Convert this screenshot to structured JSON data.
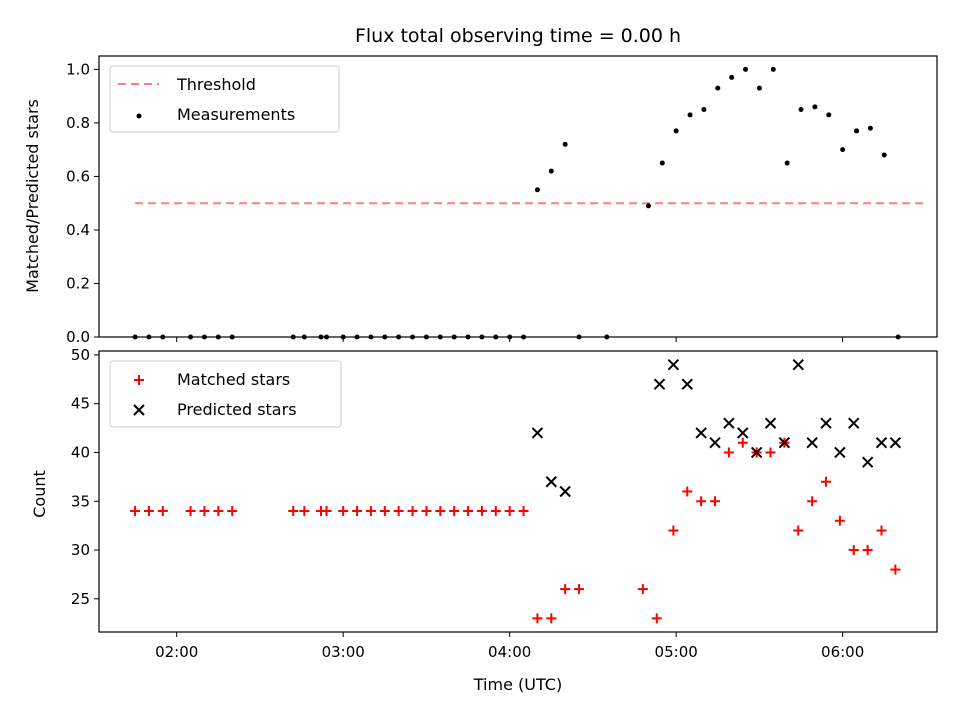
{
  "chart_data": [
    {
      "type": "scatter",
      "title": "Flux total observing time = 0.00 h",
      "xlabel": "",
      "ylabel": "Matched/Predicted stars",
      "xlim": [
        "01:32",
        "06:34"
      ],
      "ylim": [
        0,
        1.05
      ],
      "yticks": [
        "0.0",
        "0.2",
        "0.4",
        "0.6",
        "0.8",
        "1.0"
      ],
      "yticks_values": [
        0,
        0.2,
        0.4,
        0.6,
        0.8,
        1.0
      ],
      "legend": {
        "placement": "top-left",
        "entries": [
          "Threshold",
          "Measurements"
        ]
      },
      "threshold": {
        "name": "Threshold",
        "value": 0.5,
        "x_start": "01:45",
        "x_end": "06:30",
        "color": "#ff7f7f"
      },
      "series": [
        {
          "name": "Measurements",
          "color": "#000000",
          "x": [
            "01:45",
            "01:50",
            "01:55",
            "02:05",
            "02:10",
            "02:15",
            "02:20",
            "02:42",
            "02:46",
            "02:52",
            "02:54",
            "03:00",
            "03:05",
            "03:10",
            "03:15",
            "03:20",
            "03:25",
            "03:30",
            "03:35",
            "03:40",
            "03:45",
            "03:50",
            "03:55",
            "04:00",
            "04:05",
            "04:10",
            "04:15",
            "04:20",
            "04:25",
            "04:35",
            "04:50",
            "04:55",
            "05:00",
            "05:05",
            "05:10",
            "05:15",
            "05:20",
            "05:25",
            "05:30",
            "05:35",
            "05:40",
            "05:45",
            "05:50",
            "05:55",
            "06:00",
            "06:05",
            "06:10",
            "06:15",
            "06:20"
          ],
          "y": [
            0,
            0,
            0,
            0,
            0,
            0,
            0,
            0,
            0,
            0,
            0,
            0,
            0,
            0,
            0,
            0,
            0,
            0,
            0,
            0,
            0,
            0,
            0,
            0,
            0,
            0.55,
            0.62,
            0.72,
            0,
            0,
            0.49,
            0.65,
            0.77,
            0.83,
            0.85,
            0.93,
            0.97,
            1.0,
            0.93,
            1.0,
            0.65,
            0.85,
            0.86,
            0.83,
            0.7,
            0.77,
            0.78,
            0.68,
            0
          ]
        }
      ]
    },
    {
      "type": "scatter",
      "title": "",
      "xlabel": "Time (UTC)",
      "ylabel": "Count",
      "xlim": [
        "01:32",
        "06:34"
      ],
      "ylim": [
        21.6,
        50.4
      ],
      "xticks": [
        "02:00",
        "03:00",
        "04:00",
        "05:00",
        "06:00"
      ],
      "yticks": [
        "25",
        "30",
        "35",
        "40",
        "45",
        "50"
      ],
      "yticks_values": [
        25,
        30,
        35,
        40,
        45,
        50
      ],
      "legend": {
        "placement": "top-left",
        "entries": [
          "Matched stars",
          "Predicted stars"
        ]
      },
      "series": [
        {
          "name": "Matched stars",
          "color": "#ff0000",
          "marker": "plus",
          "x": [
            "01:45",
            "01:50",
            "01:55",
            "02:05",
            "02:10",
            "02:15",
            "02:20",
            "02:42",
            "02:46",
            "02:52",
            "02:54",
            "03:00",
            "03:05",
            "03:10",
            "03:15",
            "03:20",
            "03:25",
            "03:30",
            "03:35",
            "03:40",
            "03:45",
            "03:50",
            "03:55",
            "04:00",
            "04:05",
            "04:10",
            "04:15",
            "04:20",
            "04:25",
            "04:48",
            "04:53",
            "04:59",
            "05:04",
            "05:09",
            "05:14",
            "05:19",
            "05:24",
            "05:29",
            "05:34",
            "05:39",
            "05:44",
            "05:49",
            "05:54",
            "05:59",
            "06:04",
            "06:09",
            "06:14",
            "06:19"
          ],
          "y": [
            34,
            34,
            34,
            34,
            34,
            34,
            34,
            34,
            34,
            34,
            34,
            34,
            34,
            34,
            34,
            34,
            34,
            34,
            34,
            34,
            34,
            34,
            34,
            34,
            34,
            23,
            23,
            26,
            26,
            26,
            23,
            32,
            36,
            35,
            35,
            40,
            41,
            40,
            40,
            41,
            32,
            35,
            37,
            33,
            30,
            30,
            32,
            28
          ]
        },
        {
          "name": "Predicted stars",
          "color": "#000000",
          "marker": "x",
          "x": [
            "04:10",
            "04:15",
            "04:20",
            "04:54",
            "04:59",
            "05:04",
            "05:09",
            "05:14",
            "05:19",
            "05:24",
            "05:29",
            "05:34",
            "05:39",
            "05:44",
            "05:49",
            "05:54",
            "05:59",
            "06:04",
            "06:09",
            "06:14",
            "06:19"
          ],
          "y": [
            42,
            37,
            36,
            47,
            49,
            47,
            42,
            41,
            43,
            42,
            40,
            43,
            41,
            49,
            41,
            43,
            40,
            43,
            39,
            41,
            41
          ]
        }
      ]
    }
  ]
}
